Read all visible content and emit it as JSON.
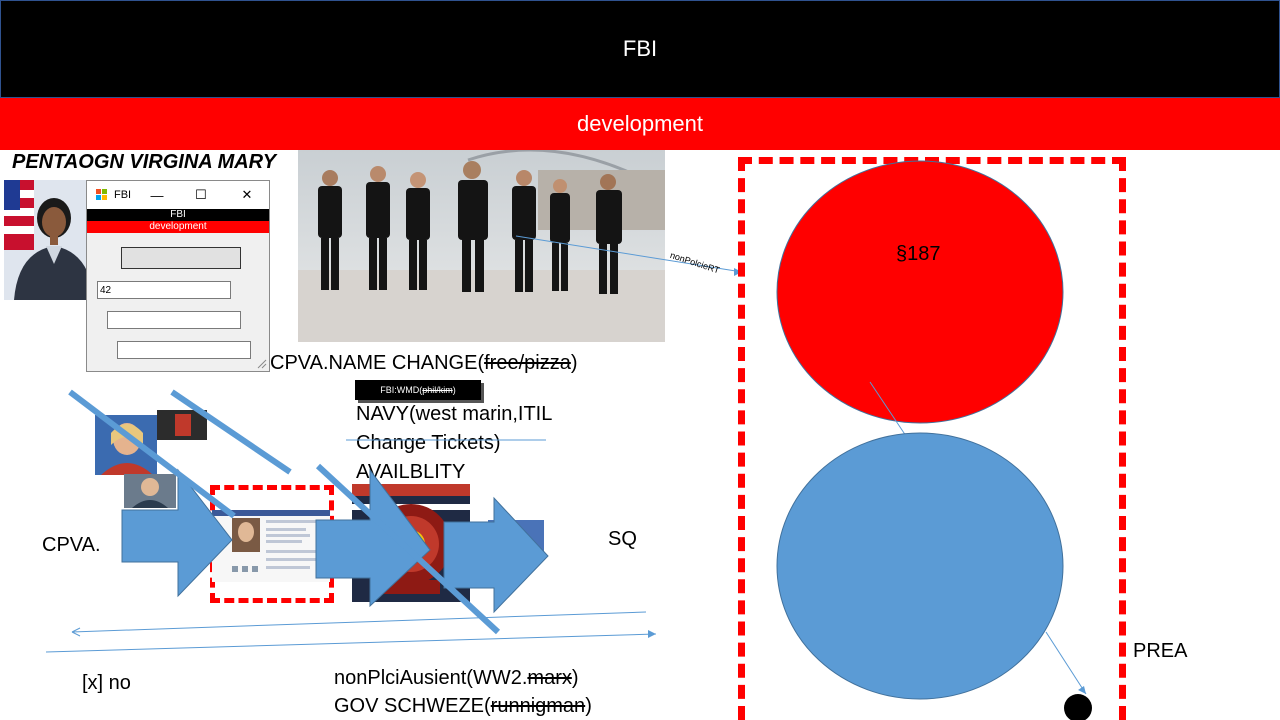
{
  "header": {
    "title": "FBI",
    "subtitle": "development"
  },
  "left_title": "PENTAOGN VIRGINA MARY",
  "window": {
    "title": "FBI",
    "banner_title": "FBI",
    "banner_subtitle": "development",
    "input_value": "42",
    "minimize_glyph": "—",
    "maximize_glyph": "☐",
    "close_glyph": "✕"
  },
  "labels": {
    "name_change_prefix": "CPVA.NAME CHANGE(",
    "name_change_struck": "free/pizza",
    "name_change_suffix": ")",
    "chip_prefix": "FBI:WMD(",
    "chip_struck": "phil/kim",
    "chip_suffix": ")",
    "navy_line1": "NAVY(west marin,ITIL",
    "navy_line2": "Change Tickets)",
    "navy_line3": "AVAILBLITY",
    "cpva": "CPVA.",
    "sq": "SQ",
    "x_no": "[x] no",
    "nonplci_prefix": "nonPlciAusient(WW2.",
    "nonplci_struck": "marx",
    "nonplci_suffix": ")",
    "gov_prefix": "GOV SCHWEZE(",
    "gov_struck": "runnigman",
    "gov_suffix": ")",
    "connector_label": "nonPolcieRT",
    "circle_red_label": "§187",
    "prea": "PREA"
  },
  "colors": {
    "red": "#ff0000",
    "black": "#000000",
    "blue_shape": "#5b9bd5",
    "blue_outline": "#41719c"
  }
}
